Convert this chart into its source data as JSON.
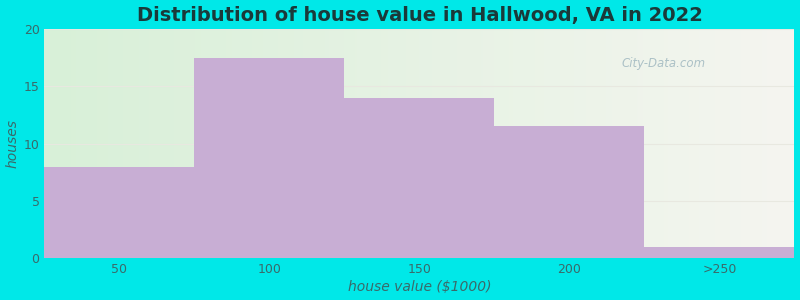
{
  "title": "Distribution of house value in Hallwood, VA in 2022",
  "xlabel": "house value ($1000)",
  "ylabel": "houses",
  "categories": [
    "50",
    "100",
    "150",
    "200",
    ">250"
  ],
  "values": [
    8,
    17.5,
    14,
    11.5,
    1
  ],
  "bar_color": "#c8aed4",
  "ylim": [
    0,
    20
  ],
  "yticks": [
    0,
    5,
    10,
    15,
    20
  ],
  "background_outer": "#00e8e8",
  "background_inner_left": "#d8f0d8",
  "background_inner_right": "#f5f5f0",
  "title_color": "#1a3a3a",
  "axis_label_color": "#3a6a6a",
  "tick_label_color": "#3a6a6a",
  "title_fontsize": 14,
  "label_fontsize": 10,
  "tick_fontsize": 9,
  "grid_color": "#e8e8e0",
  "watermark_text": "City-Data.com"
}
